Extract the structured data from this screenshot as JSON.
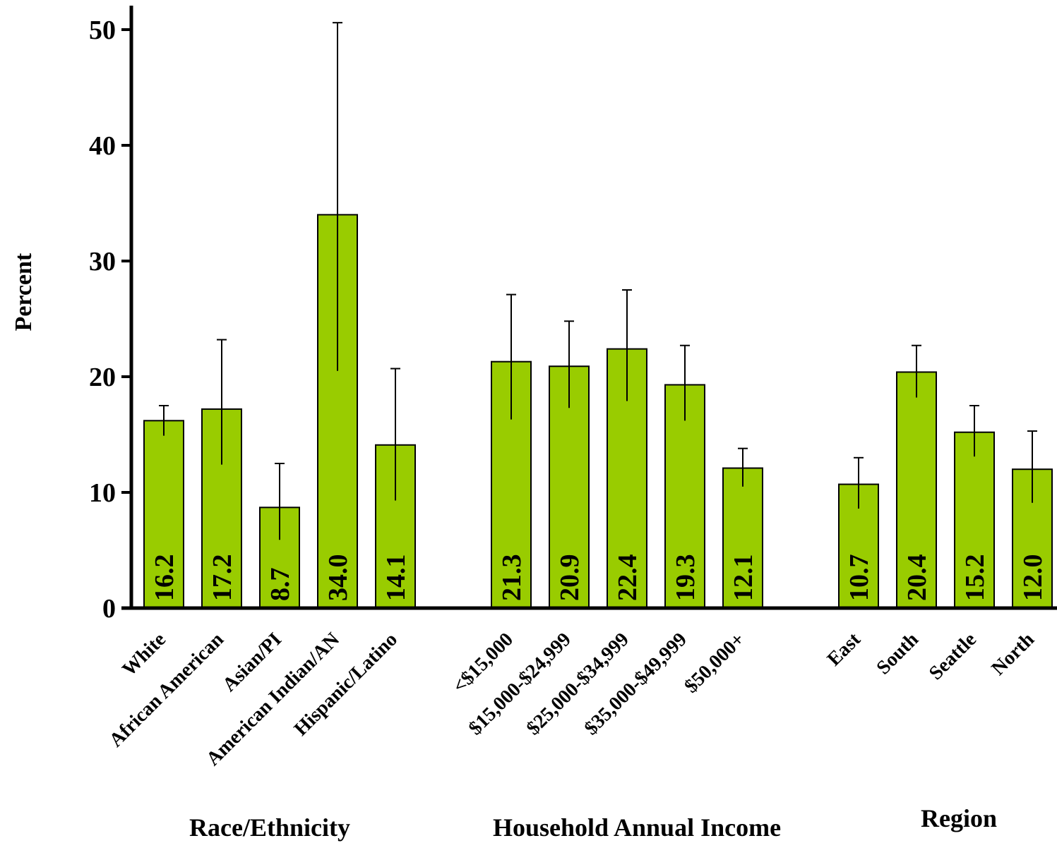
{
  "chart_data": {
    "type": "bar",
    "ylabel": "Percent",
    "ylim": [
      0,
      50
    ],
    "yticks": [
      "0",
      "10",
      "20",
      "30",
      "40",
      "50"
    ],
    "grid": false,
    "colors": {
      "bar": "#99CC00",
      "bar_stroke": "#000000",
      "axis": "#000000"
    },
    "groups": [
      {
        "name": "Race/Ethnicity",
        "bars": [
          {
            "category": "White",
            "value": 16.2,
            "label": "16.2",
            "ci_low": 14.9,
            "ci_high": 17.5
          },
          {
            "category": "African American",
            "value": 17.2,
            "label": "17.2",
            "ci_low": 12.4,
            "ci_high": 23.2
          },
          {
            "category": "Asian/PI",
            "value": 8.7,
            "label": "8.7",
            "ci_low": 5.9,
            "ci_high": 12.5
          },
          {
            "category": "American Indian/AN",
            "value": 34.0,
            "label": "34.0",
            "ci_low": 20.5,
            "ci_high": 50.6
          },
          {
            "category": "Hispanic/Latino",
            "value": 14.1,
            "label": "14.1",
            "ci_low": 9.3,
            "ci_high": 20.7
          }
        ]
      },
      {
        "name": "Household Annual Income",
        "bars": [
          {
            "category": "<$15,000",
            "value": 21.3,
            "label": "21.3",
            "ci_low": 16.3,
            "ci_high": 27.1
          },
          {
            "category": "$15,000-$24,999",
            "value": 20.9,
            "label": "20.9",
            "ci_low": 17.3,
            "ci_high": 24.8
          },
          {
            "category": "$25,000-$34,999",
            "value": 22.4,
            "label": "22.4",
            "ci_low": 17.9,
            "ci_high": 27.5
          },
          {
            "category": "$35,000-$49,999",
            "value": 19.3,
            "label": "19.3",
            "ci_low": 16.2,
            "ci_high": 22.7
          },
          {
            "category": "$50,000+",
            "value": 12.1,
            "label": "12.1",
            "ci_low": 10.5,
            "ci_high": 13.8
          }
        ]
      },
      {
        "name": "Region",
        "bars": [
          {
            "category": "East",
            "value": 10.7,
            "label": "10.7",
            "ci_low": 8.6,
            "ci_high": 13.0
          },
          {
            "category": "South",
            "value": 20.4,
            "label": "20.4",
            "ci_low": 18.2,
            "ci_high": 22.7
          },
          {
            "category": "Seattle",
            "value": 15.2,
            "label": "15.2",
            "ci_low": 13.1,
            "ci_high": 17.5
          },
          {
            "category": "North",
            "value": 12.0,
            "label": "12.0",
            "ci_low": 9.1,
            "ci_high": 15.3
          }
        ]
      }
    ]
  }
}
